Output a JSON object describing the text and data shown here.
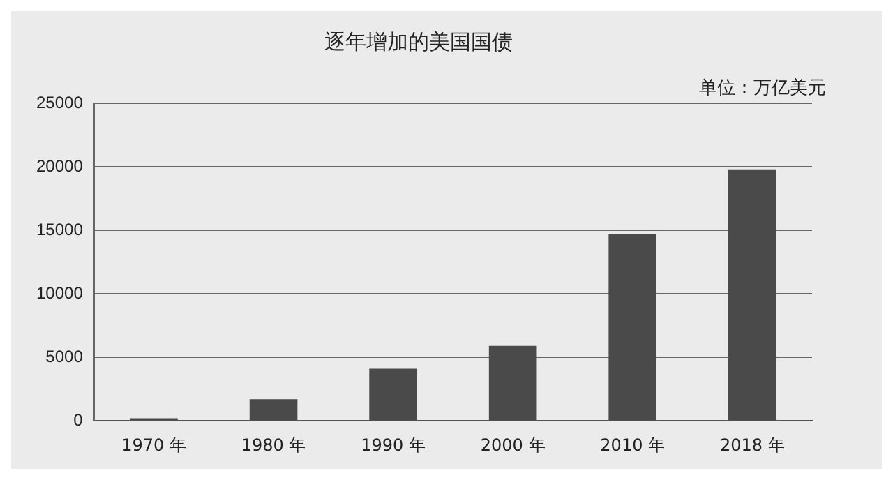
{
  "chart_data": {
    "type": "bar",
    "title": "逐年增加的美国国债",
    "annotations": [
      "单位：万亿美元"
    ],
    "categories": [
      "1970 年",
      "1980 年",
      "1990 年",
      "2000 年",
      "2010 年",
      "2018 年"
    ],
    "values": [
      200,
      1700,
      4100,
      5900,
      14700,
      19800
    ],
    "color": "#4a4a4a",
    "ylim": [
      0,
      25000
    ],
    "yticks": [
      0,
      5000,
      10000,
      15000,
      20000,
      25000
    ],
    "grid": "y"
  }
}
